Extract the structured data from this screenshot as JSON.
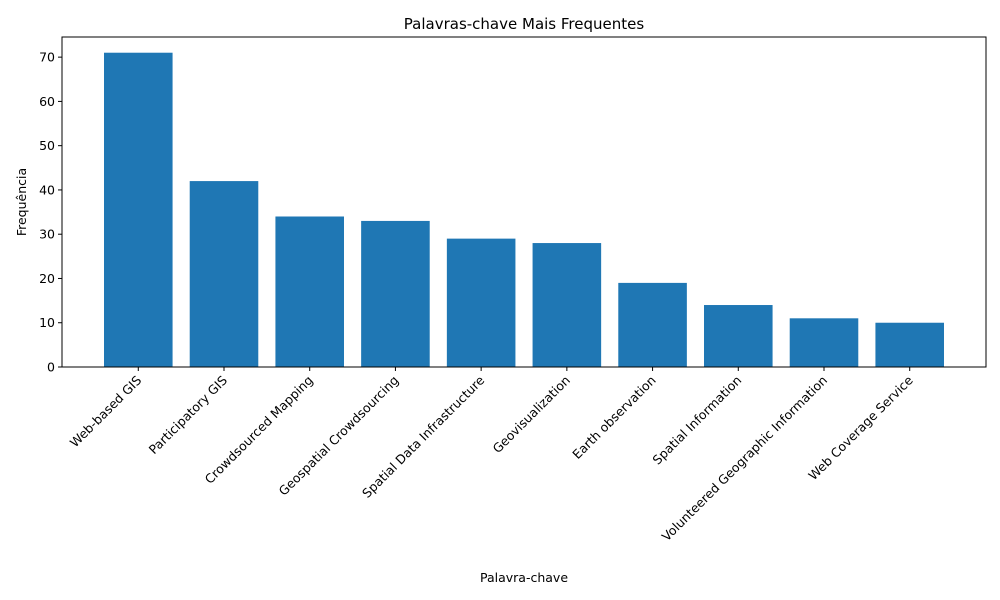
{
  "chart_data": {
    "type": "bar",
    "title": "Palavras-chave Mais Frequentes",
    "xlabel": "Palavra-chave",
    "ylabel": "Frequência",
    "categories": [
      "Web-based GIS",
      "Participatory GIS",
      "Crowdsourced Mapping",
      "Geospatial Crowdsourcing",
      "Spatial Data Infrastructure",
      "Geovisualization",
      "Earth observation",
      "Spatial Information",
      "Volunteered Geographic Information",
      "Web Coverage Service"
    ],
    "values": [
      71,
      42,
      34,
      33,
      29,
      28,
      19,
      14,
      11,
      10
    ],
    "ylim": [
      0,
      74.55
    ],
    "yticks": [
      0,
      10,
      20,
      30,
      40,
      50,
      60,
      70
    ],
    "grid": false,
    "bar_color": "#1f77b4"
  }
}
